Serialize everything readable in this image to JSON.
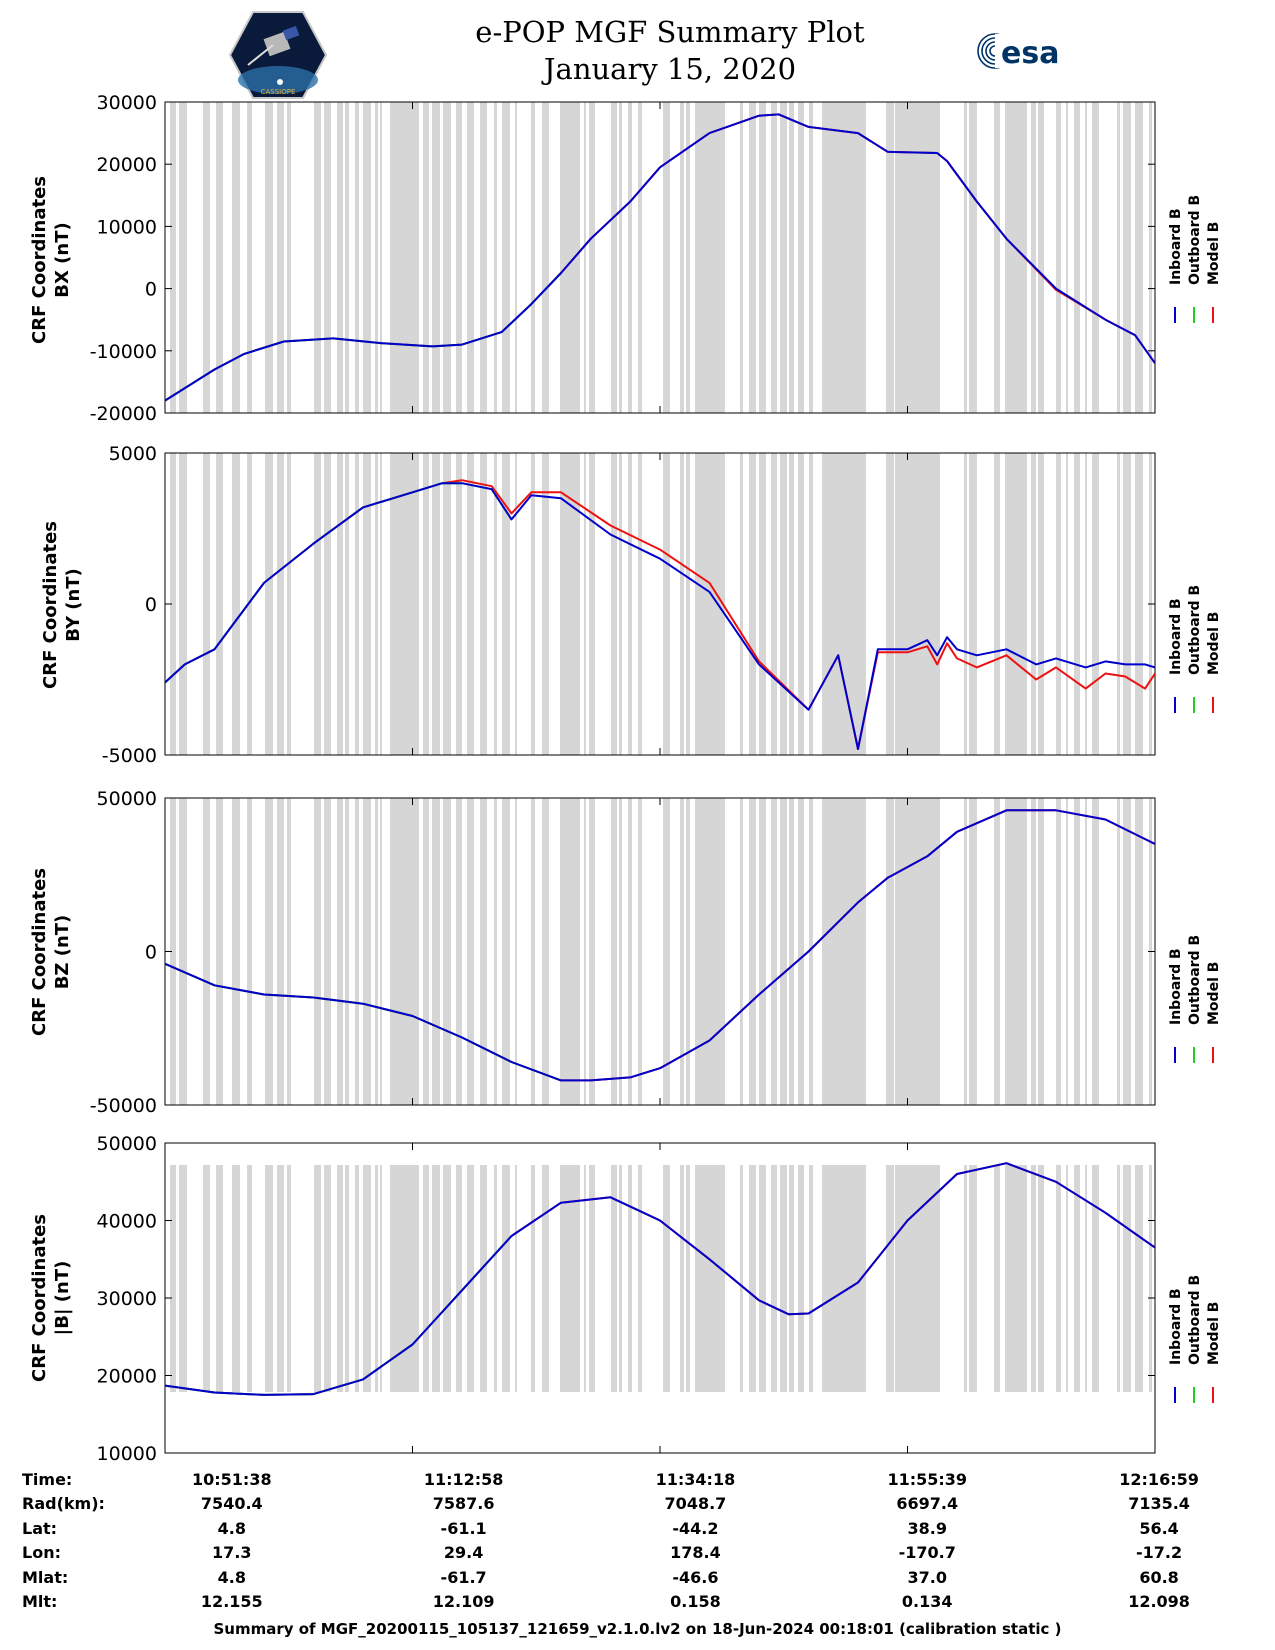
{
  "header": {
    "title": "e-POP MGF Summary Plot",
    "subtitle": "January 15, 2020",
    "left_logo_text": "CASSIOPE",
    "right_logo_text": "esa"
  },
  "legend": {
    "labels": [
      "Inboard B",
      "Outboard B",
      "Model B"
    ],
    "colors": [
      "#0000cc",
      "#22cc22",
      "#ee1111"
    ]
  },
  "time_axis": {
    "labels": [
      "10:51:38",
      "11:12:58",
      "11:34:18",
      "11:55:39",
      "12:16:59"
    ]
  },
  "ephemeris": {
    "rows": [
      {
        "label": "Time:",
        "values": [
          "10:51:38",
          "11:12:58",
          "11:34:18",
          "11:55:39",
          "12:16:59"
        ]
      },
      {
        "label": "Rad(km):",
        "values": [
          "7540.4",
          "7587.6",
          "7048.7",
          "6697.4",
          "7135.4"
        ]
      },
      {
        "label": "Lat:",
        "values": [
          "4.8",
          "-61.1",
          "-44.2",
          "38.9",
          "56.4"
        ]
      },
      {
        "label": "Lon:",
        "values": [
          "17.3",
          "29.4",
          "178.4",
          "-170.7",
          "-17.2"
        ]
      },
      {
        "label": "Mlat:",
        "values": [
          "4.8",
          "-61.7",
          "-46.6",
          "37.0",
          "60.8"
        ]
      },
      {
        "label": "Mlt:",
        "values": [
          "12.155",
          "12.109",
          "0.158",
          "0.134",
          "12.098"
        ]
      }
    ]
  },
  "footer": "Summary of MGF_20200115_105137_121659_v2.1.0.lv2 on 18-Jun-2024 00:18:01 (calibration static )",
  "chart_data": [
    {
      "type": "line",
      "title": "BX",
      "ylabel": [
        "CRF Coordinates",
        "BX (nT)"
      ],
      "ylim": [
        -20000,
        30000
      ],
      "yticks": [
        30000,
        20000,
        10000,
        0,
        -10000,
        -20000
      ],
      "ytick_labels": [
        "30000",
        "20000",
        "10000",
        "0",
        "-10000",
        "-20000"
      ],
      "x": [
        0,
        0.05,
        0.08,
        0.12,
        0.17,
        0.22,
        0.27,
        0.3,
        0.34,
        0.37,
        0.4,
        0.43,
        0.47,
        0.5,
        0.55,
        0.6,
        0.62,
        0.65,
        0.7,
        0.73,
        0.78,
        0.79,
        0.82,
        0.85,
        0.9,
        0.95,
        0.98,
        1.0
      ],
      "series": [
        {
          "name": "Inboard B",
          "values": [
            -18000,
            -13000,
            -10500,
            -8500,
            -8000,
            -8800,
            -9300,
            -9000,
            -7000,
            -2500,
            2500,
            8000,
            14000,
            19500,
            25000,
            27800,
            28000,
            26000,
            25000,
            22000,
            21800,
            20500,
            14000,
            8000,
            0,
            -5000,
            -7500,
            -12000
          ]
        },
        {
          "name": "Outboard B",
          "values": [
            -18000,
            -13000,
            -10500,
            -8500,
            -8000,
            -8800,
            -9300,
            -9000,
            -7000,
            -2500,
            2500,
            null,
            null,
            null,
            null,
            null,
            null,
            null,
            null,
            null,
            null,
            null,
            null,
            null,
            null,
            null,
            null,
            null
          ]
        },
        {
          "name": "Model B",
          "values": [
            -18000,
            -13000,
            -10500,
            -8500,
            -8000,
            -8800,
            -9300,
            -9000,
            -7000,
            -2500,
            2500,
            8000,
            14000,
            19500,
            25000,
            27800,
            28000,
            26000,
            25000,
            22000,
            21800,
            20500,
            14000,
            8000,
            -200,
            -5000,
            -7500,
            -12000
          ]
        }
      ]
    },
    {
      "type": "line",
      "title": "BY",
      "ylabel": [
        "CRF Coordinates",
        "BY (nT)"
      ],
      "ylim": [
        -5000,
        5000
      ],
      "yticks": [
        5000,
        0,
        -5000
      ],
      "ytick_labels": [
        "5000",
        "0",
        "-5000"
      ],
      "x": [
        0,
        0.02,
        0.05,
        0.1,
        0.15,
        0.2,
        0.25,
        0.28,
        0.3,
        0.33,
        0.35,
        0.37,
        0.4,
        0.45,
        0.5,
        0.55,
        0.6,
        0.65,
        0.68,
        0.7,
        0.72,
        0.75,
        0.77,
        0.78,
        0.79,
        0.8,
        0.82,
        0.85,
        0.88,
        0.9,
        0.93,
        0.95,
        0.97,
        0.99,
        1.0
      ],
      "series": [
        {
          "name": "Inboard B",
          "values": [
            -2600,
            -2000,
            -1500,
            700,
            2000,
            3200,
            3700,
            4000,
            4000,
            3800,
            2800,
            3600,
            3500,
            2300,
            1500,
            400,
            -2000,
            -3500,
            -1700,
            -4800,
            -1500,
            -1500,
            -1200,
            -1700,
            -1100,
            -1500,
            -1700,
            -1500,
            -2000,
            -1800,
            -2100,
            -1900,
            -2000,
            -2000,
            -2100
          ]
        },
        {
          "name": "Outboard B",
          "values": [
            -2600,
            -2000,
            -1500,
            700,
            2000,
            3200,
            3700,
            4000,
            4000,
            3800,
            2800,
            null,
            null,
            null,
            null,
            null,
            null,
            null,
            null,
            null,
            null,
            null,
            null,
            null,
            null,
            null,
            null,
            null,
            null,
            null,
            null,
            null,
            null,
            null,
            null
          ]
        },
        {
          "name": "Model B",
          "values": [
            -2600,
            -2000,
            -1500,
            700,
            2000,
            3200,
            3700,
            4000,
            4100,
            3900,
            3000,
            3700,
            3700,
            2600,
            1800,
            700,
            -1900,
            -3500,
            -1700,
            -4800,
            -1600,
            -1600,
            -1400,
            -2000,
            -1300,
            -1800,
            -2100,
            -1700,
            -2500,
            -2100,
            -2800,
            -2300,
            -2400,
            -2800,
            -2300
          ]
        }
      ]
    },
    {
      "type": "line",
      "title": "BZ",
      "ylabel": [
        "CRF Coordinates",
        "BZ (nT)"
      ],
      "ylim": [
        -50000,
        50000
      ],
      "yticks": [
        50000,
        0,
        -50000
      ],
      "ytick_labels": [
        "50000",
        "0",
        "-50000"
      ],
      "x": [
        0,
        0.05,
        0.1,
        0.15,
        0.2,
        0.25,
        0.3,
        0.35,
        0.4,
        0.43,
        0.47,
        0.5,
        0.55,
        0.6,
        0.65,
        0.7,
        0.73,
        0.77,
        0.8,
        0.85,
        0.9,
        0.95,
        1.0
      ],
      "series": [
        {
          "name": "Inboard B",
          "values": [
            -4000,
            -11000,
            -14000,
            -15000,
            -17000,
            -21000,
            -28000,
            -36000,
            -42000,
            -42000,
            -41000,
            -38000,
            -29000,
            -14000,
            0,
            16000,
            24000,
            31000,
            39000,
            46000,
            46000,
            43000,
            35000
          ]
        },
        {
          "name": "Outboard B",
          "values": [
            -4000,
            -11000,
            -14000,
            -15000,
            -17000,
            -21000,
            -28000,
            -36000,
            -42000,
            null,
            null,
            null,
            null,
            null,
            null,
            null,
            null,
            null,
            null,
            null,
            null,
            null,
            null
          ]
        },
        {
          "name": "Model B",
          "values": [
            -4000,
            -11000,
            -14000,
            -15000,
            -17000,
            -21000,
            -28000,
            -36000,
            -42000,
            -42000,
            -41000,
            -38000,
            -29000,
            -14000,
            0,
            16000,
            24000,
            31000,
            39000,
            46000,
            46000,
            43000,
            35000
          ]
        }
      ]
    },
    {
      "type": "line",
      "title": "|B|",
      "ylabel": [
        "CRF Coordinates",
        "|B| (nT)"
      ],
      "ylim": [
        10000,
        50000
      ],
      "yticks": [
        50000,
        40000,
        30000,
        20000,
        10000
      ],
      "ytick_labels": [
        "50000",
        "40000",
        "30000",
        "20000",
        "10000"
      ],
      "x": [
        0,
        0.05,
        0.1,
        0.15,
        0.2,
        0.25,
        0.3,
        0.35,
        0.4,
        0.45,
        0.5,
        0.55,
        0.6,
        0.63,
        0.65,
        0.7,
        0.75,
        0.8,
        0.85,
        0.9,
        0.95,
        1.0
      ],
      "series": [
        {
          "name": "Inboard B",
          "values": [
            18700,
            17800,
            17500,
            17600,
            19500,
            24000,
            31000,
            38000,
            42300,
            43000,
            40000,
            35000,
            29700,
            27900,
            28000,
            32000,
            40000,
            46000,
            47400,
            45000,
            41000,
            36500
          ]
        },
        {
          "name": "Outboard B",
          "values": [
            18700,
            17800,
            17500,
            17600,
            19500,
            24000,
            31000,
            38000,
            null,
            null,
            null,
            null,
            null,
            null,
            null,
            null,
            null,
            null,
            null,
            null,
            null,
            null
          ]
        },
        {
          "name": "Model B",
          "values": [
            18700,
            17800,
            17500,
            17600,
            19500,
            24000,
            31000,
            38000,
            42300,
            43000,
            40000,
            35000,
            29700,
            27900,
            28000,
            32000,
            40000,
            46000,
            47400,
            45000,
            41000,
            36500
          ]
        }
      ]
    }
  ]
}
